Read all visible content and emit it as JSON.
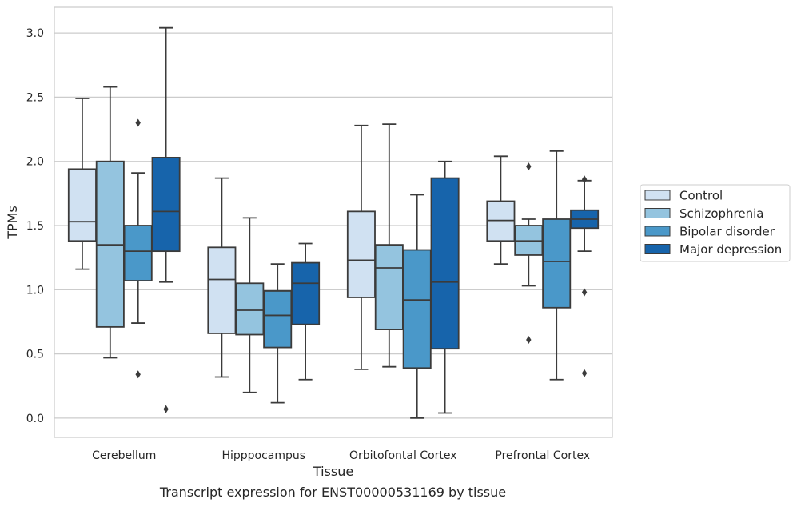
{
  "caption": "Transcript expression for ENST00000531169 by tissue",
  "chart_data": {
    "type": "box",
    "xlabel": "Tissue",
    "ylabel": "TPMs",
    "ylim": [
      -0.15,
      3.2
    ],
    "yticks": [
      0.0,
      0.5,
      1.0,
      1.5,
      2.0,
      2.5,
      3.0
    ],
    "yticklabels": [
      "0.0",
      "0.5",
      "1.0",
      "1.5",
      "2.0",
      "2.5",
      "3.0"
    ],
    "grid": true,
    "legend_position": "right",
    "categories": [
      "Cerebellum",
      "Hipppocampus",
      "Orbitofontal Cortex",
      "Prefrontal Cortex"
    ],
    "series": [
      {
        "name": "Control",
        "color": "#d0e1f2",
        "boxes": [
          {
            "whislo": 1.16,
            "q1": 1.38,
            "med": 1.53,
            "q3": 1.94,
            "whishi": 2.49,
            "fliers": []
          },
          {
            "whislo": 0.32,
            "q1": 0.66,
            "med": 1.08,
            "q3": 1.33,
            "whishi": 1.87,
            "fliers": []
          },
          {
            "whislo": 0.38,
            "q1": 0.94,
            "med": 1.23,
            "q3": 1.61,
            "whishi": 2.28,
            "fliers": []
          },
          {
            "whislo": 1.2,
            "q1": 1.38,
            "med": 1.54,
            "q3": 1.69,
            "whishi": 2.04,
            "fliers": []
          }
        ]
      },
      {
        "name": "Schizophrenia",
        "color": "#94c4df",
        "boxes": [
          {
            "whislo": 0.47,
            "q1": 0.71,
            "med": 1.35,
            "q3": 2.0,
            "whishi": 2.58,
            "fliers": []
          },
          {
            "whislo": 0.2,
            "q1": 0.65,
            "med": 0.84,
            "q3": 1.05,
            "whishi": 1.56,
            "fliers": []
          },
          {
            "whislo": 0.4,
            "q1": 0.69,
            "med": 1.17,
            "q3": 1.35,
            "whishi": 2.29,
            "fliers": []
          },
          {
            "whislo": 1.03,
            "q1": 1.27,
            "med": 1.38,
            "q3": 1.5,
            "whishi": 1.55,
            "fliers": [
              0.61,
              1.96
            ]
          }
        ]
      },
      {
        "name": "Bipolar disorder",
        "color": "#4a98c9",
        "boxes": [
          {
            "whislo": 0.74,
            "q1": 1.07,
            "med": 1.3,
            "q3": 1.5,
            "whishi": 1.91,
            "fliers": [
              0.34,
              2.3
            ]
          },
          {
            "whislo": 0.12,
            "q1": 0.55,
            "med": 0.8,
            "q3": 0.99,
            "whishi": 1.2,
            "fliers": []
          },
          {
            "whislo": 0.0,
            "q1": 0.39,
            "med": 0.92,
            "q3": 1.31,
            "whishi": 1.74,
            "fliers": []
          },
          {
            "whislo": 0.3,
            "q1": 0.86,
            "med": 1.22,
            "q3": 1.55,
            "whishi": 2.08,
            "fliers": []
          }
        ]
      },
      {
        "name": "Major depression",
        "color": "#1764ab",
        "boxes": [
          {
            "whislo": 1.06,
            "q1": 1.3,
            "med": 1.61,
            "q3": 2.03,
            "whishi": 3.04,
            "fliers": [
              0.07
            ]
          },
          {
            "whislo": 0.3,
            "q1": 0.73,
            "med": 1.05,
            "q3": 1.21,
            "whishi": 1.36,
            "fliers": []
          },
          {
            "whislo": 0.04,
            "q1": 0.54,
            "med": 1.06,
            "q3": 1.87,
            "whishi": 2.0,
            "fliers": []
          },
          {
            "whislo": 1.3,
            "q1": 1.48,
            "med": 1.55,
            "q3": 1.62,
            "whishi": 1.85,
            "fliers": [
              0.35,
              0.98,
              1.86
            ]
          }
        ]
      }
    ]
  }
}
